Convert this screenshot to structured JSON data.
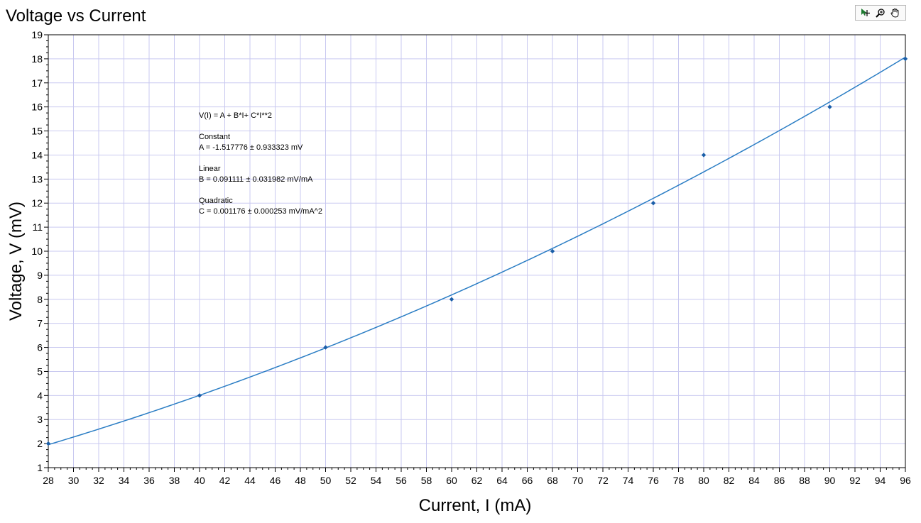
{
  "window": {
    "title": "Voltage vs Current",
    "tools": [
      {
        "name": "select-cursor-icon"
      },
      {
        "name": "zoom-icon"
      },
      {
        "name": "pan-hand-icon"
      }
    ]
  },
  "chart_data": {
    "type": "scatter",
    "title": "Voltage vs Current",
    "xlabel": "Current, I (mA)",
    "ylabel": "Voltage, V (mV)",
    "xlim": [
      28,
      96
    ],
    "ylim": [
      1,
      19
    ],
    "x_major_ticks": [
      28,
      30,
      32,
      34,
      36,
      38,
      40,
      42,
      44,
      46,
      48,
      50,
      52,
      54,
      56,
      58,
      60,
      62,
      64,
      66,
      68,
      70,
      72,
      74,
      76,
      78,
      80,
      82,
      84,
      86,
      88,
      90,
      92,
      94,
      96
    ],
    "y_major_ticks": [
      1,
      2,
      3,
      4,
      5,
      6,
      7,
      8,
      9,
      10,
      11,
      12,
      13,
      14,
      15,
      16,
      17,
      18,
      19
    ],
    "grid": true,
    "colors": {
      "data": "#1a5ea8",
      "fit": "#2a7dc4",
      "grid": "#c9c9f0"
    },
    "series": [
      {
        "points": [
          {
            "x": 28,
            "y": 2
          },
          {
            "x": 40,
            "y": 4
          },
          {
            "x": 50,
            "y": 6
          },
          {
            "x": 60,
            "y": 8
          },
          {
            "x": 68,
            "y": 10
          },
          {
            "x": 76,
            "y": 12
          },
          {
            "x": 80,
            "y": 14
          },
          {
            "x": 90,
            "y": 16
          },
          {
            "x": 96,
            "y": 18
          }
        ]
      }
    ],
    "fit": {
      "model": "quadratic",
      "coefficients": {
        "A": -1.517776,
        "B": 0.091111,
        "C": 0.001176
      }
    },
    "annotation": [
      "V(I) = A + B*I+ C*I**2",
      "",
      "Constant",
      "A = -1.517776 ± 0.933323 mV",
      "",
      "Linear",
      "B = 0.091111 ± 0.031982 mV/mA",
      "",
      "Quadratic",
      "C = 0.001176 ± 0.000253 mV/mA^2"
    ]
  }
}
